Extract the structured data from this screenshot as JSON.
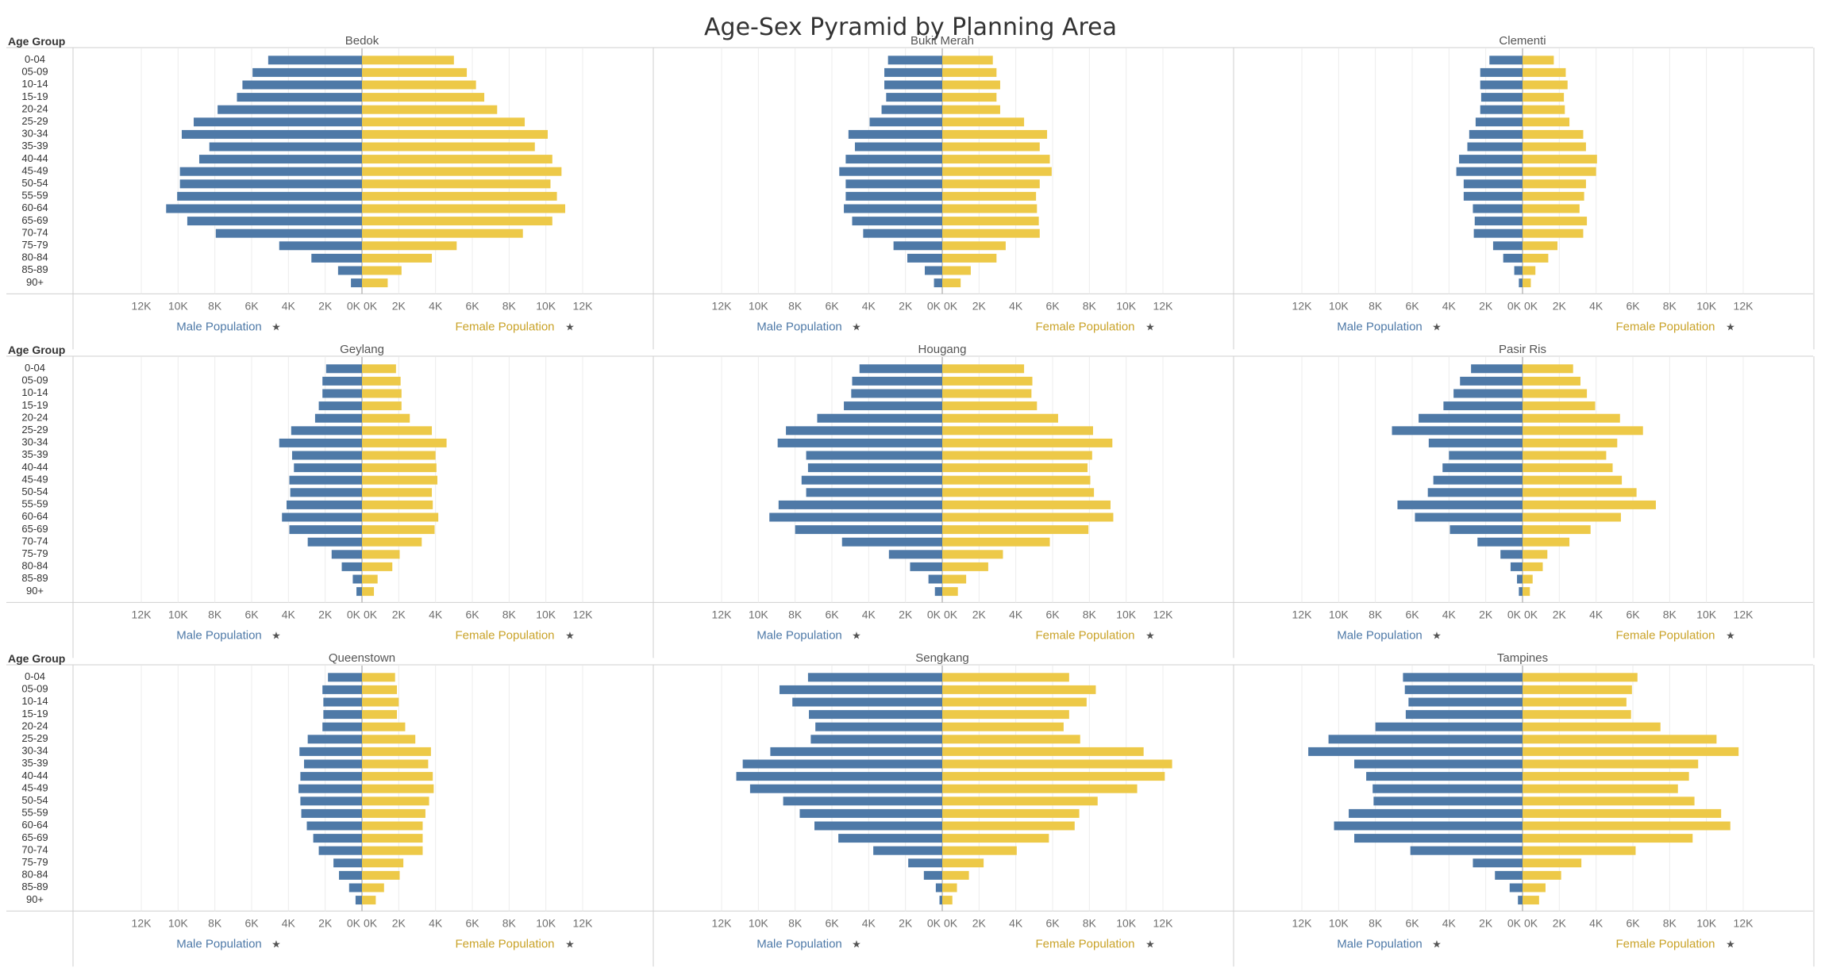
{
  "title": "Age-Sex Pyramid by Planning Area",
  "colors": {
    "male": "#4e79a7",
    "female": "#edc948",
    "male_title": "#4e79a7",
    "female_title": "#c9a227",
    "grid": "#ececec",
    "divider": "#cfcfcf",
    "axis": "#9a9a9a"
  },
  "age_group_header": "Age Group",
  "age_groups": [
    "0-04",
    "05-09",
    "10-14",
    "15-19",
    "20-24",
    "25-29",
    "30-34",
    "35-39",
    "40-44",
    "45-49",
    "50-54",
    "55-59",
    "60-64",
    "65-69",
    "70-74",
    "75-79",
    "80-84",
    "85-89",
    "90+"
  ],
  "tick_labels_male": [
    "12K",
    "10K",
    "8K",
    "6K",
    "4K",
    "2K",
    "0K"
  ],
  "tick_labels_female": [
    "0K",
    "2K",
    "4K",
    "6K",
    "8K",
    "10K",
    "12K"
  ],
  "male_axis_title": "Male Population",
  "female_axis_title": "Female Population",
  "pin_icon": "pin-icon",
  "chart_data": {
    "type": "bar",
    "orientation": "horizontal-pyramid",
    "title": "Age-Sex Pyramid by Planning Area",
    "xlabel_left": "Male Population",
    "xlabel_right": "Female Population",
    "ylabel": "Age Group",
    "xlim": [
      0,
      12000
    ],
    "grid": true,
    "categories": [
      "0-04",
      "05-09",
      "10-14",
      "15-19",
      "20-24",
      "25-29",
      "30-34",
      "35-39",
      "40-44",
      "45-49",
      "50-54",
      "55-59",
      "60-64",
      "65-69",
      "70-74",
      "75-79",
      "80-84",
      "85-89",
      "90+"
    ],
    "panels": [
      {
        "name": "Bedok",
        "male": [
          5100,
          5950,
          6500,
          6800,
          7850,
          9150,
          9800,
          8300,
          8850,
          9900,
          9900,
          10050,
          10650,
          9500,
          7950,
          4500,
          2750,
          1300,
          600
        ],
        "female": [
          5000,
          5700,
          6200,
          6650,
          7350,
          8850,
          10100,
          9400,
          10350,
          10850,
          10250,
          10600,
          11050,
          10350,
          8750,
          5150,
          3800,
          2150,
          1400
        ]
      },
      {
        "name": "Bukit Merah",
        "male": [
          2950,
          3150,
          3150,
          3050,
          3300,
          3950,
          5100,
          4750,
          5250,
          5600,
          5250,
          5250,
          5350,
          4900,
          4300,
          2650,
          1900,
          950,
          450
        ],
        "female": [
          2750,
          2950,
          3150,
          2950,
          3150,
          4450,
          5700,
          5300,
          5850,
          5950,
          5300,
          5100,
          5150,
          5250,
          5300,
          3450,
          2950,
          1550,
          1000
        ]
      },
      {
        "name": "Clementi",
        "male": [
          1800,
          2300,
          2300,
          2250,
          2300,
          2550,
          2900,
          3000,
          3450,
          3600,
          3200,
          3200,
          2700,
          2600,
          2650,
          1600,
          1050,
          450,
          200
        ],
        "female": [
          1700,
          2350,
          2450,
          2250,
          2300,
          2550,
          3300,
          3450,
          4050,
          4000,
          3450,
          3350,
          3100,
          3500,
          3300,
          1900,
          1400,
          700,
          450
        ]
      },
      {
        "name": "Geylang",
        "male": [
          1950,
          2150,
          2150,
          2350,
          2550,
          3850,
          4500,
          3800,
          3700,
          3950,
          3900,
          4100,
          4350,
          3950,
          2950,
          1650,
          1100,
          500,
          300
        ],
        "female": [
          1850,
          2100,
          2150,
          2150,
          2600,
          3800,
          4600,
          4000,
          4050,
          4100,
          3800,
          3850,
          4150,
          3950,
          3250,
          2050,
          1650,
          850,
          650
        ]
      },
      {
        "name": "Hougang",
        "male": [
          4500,
          4900,
          4950,
          5350,
          6800,
          8500,
          8950,
          7400,
          7300,
          7650,
          7400,
          8900,
          9400,
          8000,
          5450,
          2900,
          1750,
          750,
          400
        ],
        "female": [
          4450,
          4900,
          4850,
          5150,
          6300,
          8200,
          9250,
          8150,
          7900,
          8050,
          8250,
          9150,
          9300,
          7950,
          5850,
          3300,
          2500,
          1300,
          850
        ]
      },
      {
        "name": "Pasir Ris",
        "male": [
          2800,
          3400,
          3750,
          4300,
          5650,
          7100,
          5100,
          4000,
          4350,
          4850,
          5150,
          6800,
          5850,
          3950,
          2450,
          1200,
          650,
          300,
          200
        ],
        "female": [
          2750,
          3150,
          3500,
          3950,
          5300,
          6550,
          5150,
          4550,
          4900,
          5400,
          6200,
          7250,
          5350,
          3700,
          2550,
          1350,
          1100,
          550,
          400
        ]
      },
      {
        "name": "Queenstown",
        "male": [
          1850,
          2150,
          2100,
          2100,
          2150,
          2950,
          3400,
          3150,
          3350,
          3450,
          3350,
          3300,
          3000,
          2650,
          2350,
          1550,
          1250,
          700,
          350
        ],
        "female": [
          1800,
          1900,
          2000,
          1900,
          2350,
          2900,
          3750,
          3600,
          3850,
          3900,
          3650,
          3450,
          3300,
          3300,
          3300,
          2250,
          2050,
          1200,
          750
        ]
      },
      {
        "name": "Sengkang",
        "male": [
          7300,
          8850,
          8150,
          7250,
          6900,
          7150,
          9350,
          10850,
          11200,
          10450,
          8650,
          7750,
          6950,
          5650,
          3750,
          1850,
          1000,
          350,
          150
        ],
        "female": [
          6900,
          8350,
          7850,
          6900,
          6600,
          7500,
          10950,
          12500,
          12100,
          10600,
          8450,
          7450,
          7200,
          5800,
          4050,
          2250,
          1450,
          800,
          550
        ]
      },
      {
        "name": "Tampines",
        "male": [
          6500,
          6400,
          6200,
          6350,
          8000,
          10550,
          11650,
          9150,
          8500,
          8150,
          8100,
          9450,
          10250,
          9150,
          6100,
          2700,
          1500,
          700,
          250
        ],
        "female": [
          6250,
          5950,
          5650,
          5900,
          7500,
          10550,
          11750,
          9550,
          9050,
          8450,
          9350,
          10800,
          11300,
          9250,
          6150,
          3200,
          2100,
          1250,
          900
        ]
      }
    ]
  }
}
